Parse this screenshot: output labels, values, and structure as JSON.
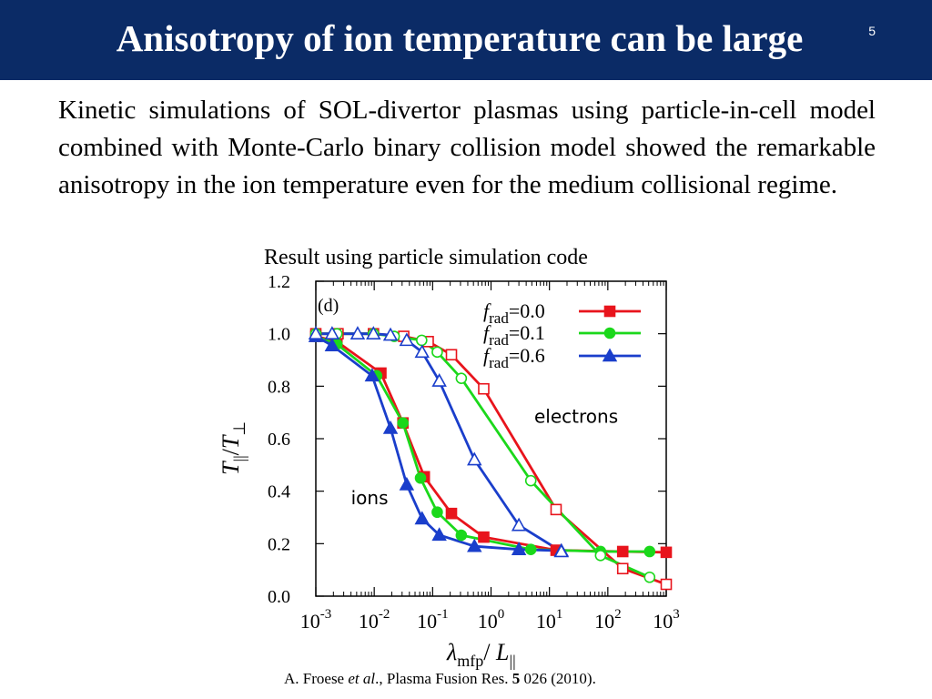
{
  "slide": {
    "title": "Anisotropy of ion temperature can be large",
    "page_number": "5",
    "body": "Kinetic simulations of SOL-divertor plasmas using particle-in-cell model combined with Monte-Carlo binary collision model showed the remarkable anisotropy in the ion temperature even for the medium collisional regime.",
    "caption": "Result using particle simulation code",
    "citation": {
      "authors_prefix": "A. Froese ",
      "etal": "et al",
      "journal_mid": "., Plasma Fusion Res. ",
      "volume": "5",
      "rest": " 026 (2010)."
    },
    "header_color": "#0b2b66"
  },
  "chart_data": {
    "type": "line",
    "panel_label": "(d)",
    "xlabel": "λmfp / L||",
    "ylabel": "T|| / T⊥",
    "x_scale": "log",
    "xlim": [
      0.001,
      1000
    ],
    "ylim": [
      0.0,
      1.2
    ],
    "x_ticks": [
      {
        "base": "10",
        "exp": "-3",
        "value": 0.001
      },
      {
        "base": "10",
        "exp": "-2",
        "value": 0.01
      },
      {
        "base": "10",
        "exp": "-1",
        "value": 0.1
      },
      {
        "base": "10",
        "exp": "0",
        "value": 1
      },
      {
        "base": "10",
        "exp": "1",
        "value": 10
      },
      {
        "base": "10",
        "exp": "2",
        "value": 100
      },
      {
        "base": "10",
        "exp": "3",
        "value": 1000
      }
    ],
    "y_ticks": [
      "0.0",
      "0.2",
      "0.4",
      "0.6",
      "0.8",
      "1.0",
      "1.2"
    ],
    "annotations": [
      {
        "text": "electrons",
        "x": 5.5,
        "y": 0.66
      },
      {
        "text": "ions",
        "x": 0.004,
        "y": 0.35
      }
    ],
    "legend": {
      "position": "top-right",
      "entries": [
        {
          "prefix": "f",
          "sub": "rad",
          "value": "=0.0",
          "color": "#e8141c",
          "marker": "square"
        },
        {
          "prefix": "f",
          "sub": "rad",
          "value": "=0.1",
          "color": "#1bd81b",
          "marker": "circle"
        },
        {
          "prefix": "f",
          "sub": "rad",
          "value": "=0.6",
          "color": "#1a3ecb",
          "marker": "triangle"
        }
      ]
    },
    "series": [
      {
        "name": "ions, frad=0.0",
        "color": "#e8141c",
        "marker": "square",
        "filled": true,
        "x": [
          0.001,
          0.0023,
          0.013,
          0.031,
          0.072,
          0.21,
          0.75,
          13,
          180,
          1000
        ],
        "y": [
          0.99,
          0.97,
          0.85,
          0.66,
          0.455,
          0.315,
          0.225,
          0.175,
          0.17,
          0.167
        ]
      },
      {
        "name": "ions, frad=0.1",
        "color": "#1bd81b",
        "marker": "circle",
        "filled": true,
        "x": [
          0.001,
          0.0023,
          0.011,
          0.031,
          0.062,
          0.12,
          0.31,
          4.8,
          75,
          520
        ],
        "y": [
          0.99,
          0.96,
          0.84,
          0.66,
          0.45,
          0.32,
          0.232,
          0.178,
          0.17,
          0.17
        ]
      },
      {
        "name": "ions, frad=0.6",
        "color": "#1a3ecb",
        "marker": "triangle",
        "filled": true,
        "x": [
          0.001,
          0.0019,
          0.0092,
          0.019,
          0.036,
          0.066,
          0.13,
          0.52,
          3.0,
          16
        ],
        "y": [
          0.99,
          0.955,
          0.84,
          0.64,
          0.425,
          0.295,
          0.233,
          0.19,
          0.178,
          0.173
        ]
      },
      {
        "name": "electrons, frad=0.0",
        "color": "#e8141c",
        "marker": "square",
        "filled": false,
        "x": [
          0.001,
          0.0024,
          0.0097,
          0.032,
          0.084,
          0.21,
          0.75,
          13,
          180,
          1000
        ],
        "y": [
          1.0,
          1.0,
          1.0,
          0.99,
          0.97,
          0.92,
          0.79,
          0.33,
          0.105,
          0.045
        ]
      },
      {
        "name": "electrons, frad=0.1",
        "color": "#1bd81b",
        "marker": "circle",
        "filled": false,
        "x": [
          0.001,
          0.0023,
          0.0097,
          0.022,
          0.065,
          0.12,
          0.31,
          4.8,
          75,
          520
        ],
        "y": [
          1.0,
          1.0,
          1.0,
          0.99,
          0.975,
          0.93,
          0.83,
          0.44,
          0.155,
          0.072
        ]
      },
      {
        "name": "electrons, frad=0.6",
        "color": "#1a3ecb",
        "marker": "triangle",
        "filled": false,
        "x": [
          0.001,
          0.0019,
          0.0052,
          0.0097,
          0.019,
          0.036,
          0.066,
          0.13,
          0.52,
          3.0,
          16
        ],
        "y": [
          1.0,
          1.0,
          1.0,
          1.0,
          0.995,
          0.975,
          0.93,
          0.82,
          0.52,
          0.27,
          0.17
        ]
      }
    ]
  }
}
